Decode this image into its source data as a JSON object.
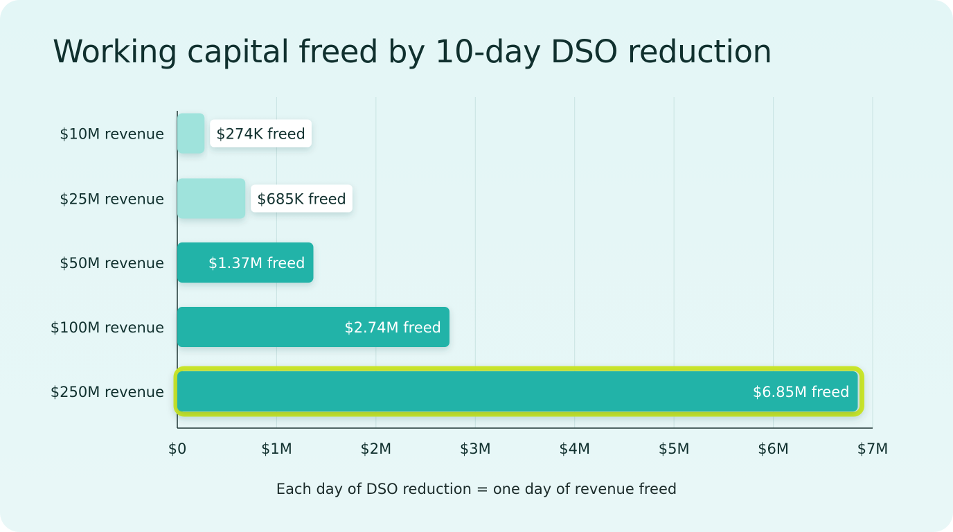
{
  "chart_data": {
    "type": "bar",
    "orientation": "horizontal",
    "title": "Working capital freed by 10-day DSO reduction",
    "categories": [
      "$10M revenue",
      "$25M revenue",
      "$50M revenue",
      "$100M revenue",
      "$250M revenue"
    ],
    "values": [
      0.274,
      0.685,
      1.37,
      2.74,
      6.85
    ],
    "value_unit": "$M",
    "data_labels": [
      "$274K freed",
      "$685K freed",
      "$1.37M freed",
      "$2.74M freed",
      "$6.85M freed"
    ],
    "xlim": [
      0,
      7
    ],
    "xticks": [
      0,
      1,
      2,
      3,
      4,
      5,
      6,
      7
    ],
    "xtick_labels": [
      "$0",
      "$1M",
      "$2M",
      "$3M",
      "$4M",
      "$5M",
      "$6M",
      "$7M"
    ],
    "xlabel": "",
    "ylabel": "",
    "grid": "vertical",
    "highlighted_category": "$250M revenue",
    "annotation": "Each day of DSO reduction = one day of revenue freed",
    "colors": {
      "bar_light": "#9fe3dc",
      "bar_dark": "#20b3a8",
      "highlight_border": "#c9e52a",
      "text": "#10302e",
      "grid": "#c9e3e2",
      "axis": "#1e3533"
    },
    "bar_styles": [
      "light",
      "light",
      "dark",
      "dark",
      "dark"
    ]
  }
}
